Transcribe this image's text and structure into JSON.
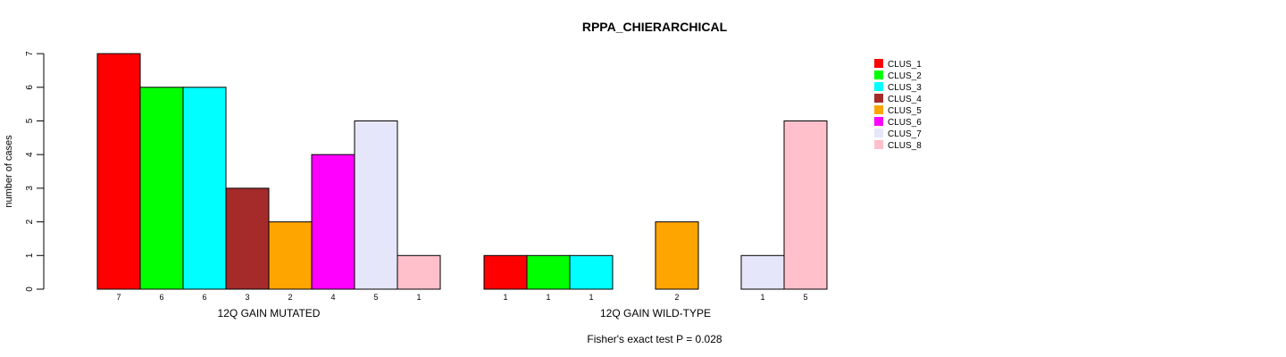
{
  "chart_data": {
    "type": "bar",
    "title": "RPPA_CHIERARCHICAL",
    "ylabel": "number of cases",
    "ylim": [
      0,
      7
    ],
    "yticks": [
      0,
      1,
      2,
      3,
      4,
      5,
      6,
      7
    ],
    "groups": [
      "12Q GAIN MUTATED",
      "12Q GAIN WILD-TYPE"
    ],
    "categories": [
      "CLUS_1",
      "CLUS_2",
      "CLUS_3",
      "CLUS_4",
      "CLUS_5",
      "CLUS_6",
      "CLUS_7",
      "CLUS_8"
    ],
    "colors": [
      "#ff0000",
      "#00ff00",
      "#00ffff",
      "#a52a2a",
      "#ffa500",
      "#ff00ff",
      "#e6e6fa",
      "#ffc0cb"
    ],
    "series": [
      {
        "values": [
          7,
          6,
          6,
          3,
          2,
          4,
          5,
          1
        ]
      },
      {
        "values": [
          1,
          1,
          1,
          0,
          2,
          0,
          1,
          5
        ]
      }
    ],
    "legend": {
      "position": "top-right"
    },
    "footnote": "Fisher's exact test P = 0.028",
    "grid": false
  }
}
